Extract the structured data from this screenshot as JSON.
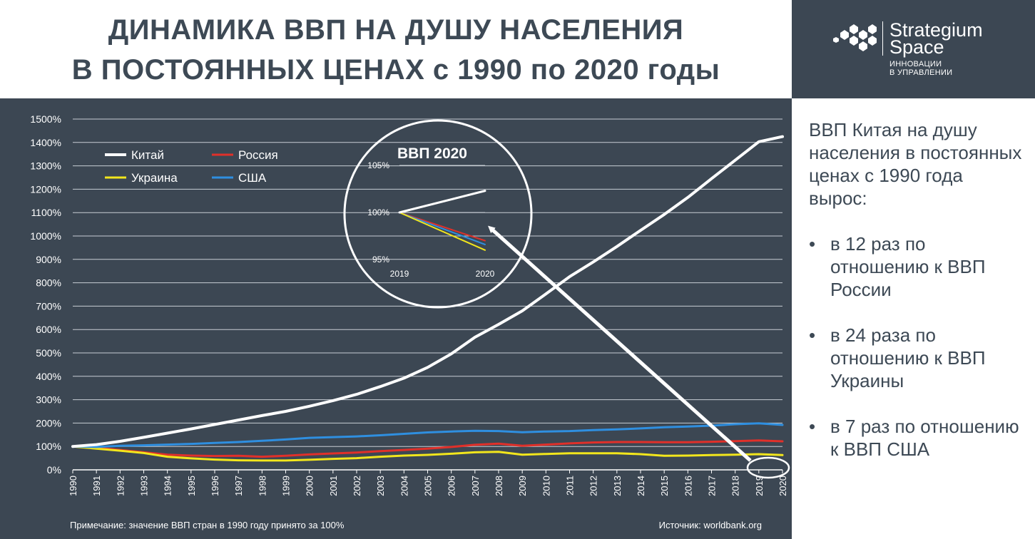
{
  "header": {
    "title_line1": "ДИНАМИКА ВВП НА ДУШУ НАСЕЛЕНИЯ",
    "title_line2": "В ПОСТОЯННЫХ ЦЕНАХ с 1990 по 2020 годы"
  },
  "logo": {
    "name_line1": "Strategium",
    "name_line2": "Space",
    "tagline_line1": "ИННОВАЦИИ",
    "tagline_line2": "В УПРАВЛЕНИИ",
    "icon": "hexagon-cluster-icon"
  },
  "side_panel": {
    "intro": "ВВП Китая на душу населения в постоянных ценах с 1990 года вырос:",
    "bullets": [
      "в 12 раз по отношению к ВВП России",
      "в 24 раза по отношению к ВВП Украины",
      "в 7 раз по отношению к ВВП США"
    ]
  },
  "footer": {
    "note": "Примечание: значение ВВП стран в 1990 году принято за 100%",
    "source": "Источник: worldbank.org"
  },
  "colors": {
    "background": "#3c4753",
    "china": "#ffffff",
    "russia": "#e0302a",
    "ukraine": "#f2e61c",
    "usa": "#2f8fe0",
    "gridline": "#c8ced4"
  },
  "chart_data": [
    {
      "type": "line",
      "title": "",
      "ylim": [
        0,
        1500
      ],
      "y_ticks": [
        "0%",
        "100%",
        "200%",
        "300%",
        "400%",
        "500%",
        "600%",
        "700%",
        "800%",
        "900%",
        "1000%",
        "1100%",
        "1200%",
        "1300%",
        "1400%",
        "1500%"
      ],
      "x": [
        "1990",
        "1991",
        "1992",
        "1993",
        "1994",
        "1995",
        "1996",
        "1997",
        "1998",
        "1999",
        "2000",
        "2001",
        "2002",
        "2003",
        "2004",
        "2005",
        "2006",
        "2007",
        "2008",
        "2009",
        "2010",
        "2011",
        "2012",
        "2013",
        "2014",
        "2015",
        "2016",
        "2017",
        "2018",
        "2019",
        "2020"
      ],
      "grid": true,
      "legend_position": "top-left",
      "series": [
        {
          "name": "Китай",
          "values": [
            100,
            108,
            122,
            139,
            157,
            175,
            194,
            213,
            232,
            250,
            272,
            296,
            323,
            356,
            392,
            438,
            496,
            567,
            622,
            680,
            752,
            826,
            889,
            955,
            1024,
            1092,
            1165,
            1245,
            1324,
            1403,
            1425
          ]
        },
        {
          "name": "Россия",
          "values": [
            100,
            95,
            85,
            75,
            65,
            61,
            59,
            60,
            56,
            60,
            66,
            70,
            74,
            80,
            85,
            91,
            98,
            107,
            112,
            103,
            108,
            113,
            117,
            119,
            119,
            118,
            118,
            120,
            123,
            126,
            122
          ]
        },
        {
          "name": "Украина",
          "values": [
            100,
            91,
            82,
            72,
            56,
            49,
            44,
            41,
            40,
            40,
            43,
            47,
            50,
            56,
            61,
            64,
            69,
            75,
            77,
            65,
            68,
            71,
            71,
            71,
            67,
            60,
            61,
            63,
            65,
            67,
            63
          ]
        },
        {
          "name": "США",
          "values": [
            100,
            98,
            103,
            105,
            108,
            111,
            115,
            119,
            124,
            130,
            137,
            140,
            143,
            148,
            154,
            160,
            164,
            167,
            166,
            161,
            164,
            166,
            170,
            173,
            177,
            182,
            185,
            189,
            195,
            199,
            192
          ]
        }
      ]
    },
    {
      "type": "line",
      "title": "ВВП 2020",
      "x": [
        "2019",
        "2020"
      ],
      "ylim": [
        95,
        105
      ],
      "y_ticks": [
        "95%",
        "100%",
        "105%"
      ],
      "series": [
        {
          "name": "Китай",
          "values": [
            100,
            102.3
          ]
        },
        {
          "name": "Россия",
          "values": [
            100,
            97.0
          ]
        },
        {
          "name": "Украина",
          "values": [
            100,
            96.0
          ]
        },
        {
          "name": "США",
          "values": [
            100,
            96.6
          ]
        }
      ]
    }
  ]
}
